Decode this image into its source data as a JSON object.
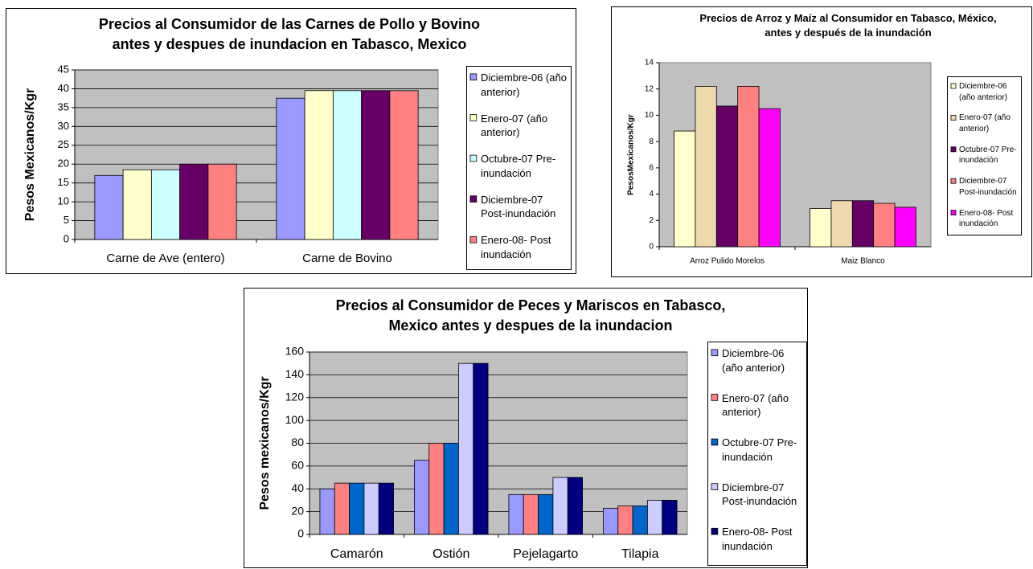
{
  "chart_data": [
    {
      "type": "bar",
      "title": "Precios al Consumidor de las Carnes de Pollo y Bovino antes y despues de inundacion en Tabasco, Mexico",
      "y_label": "Pesos Mexicanos/Kgr",
      "categories": [
        "Carne de Ave (entero)",
        "Carne de Bovino"
      ],
      "ylim": [
        0,
        45
      ],
      "yticks": [
        0,
        5,
        10,
        15,
        20,
        25,
        30,
        35,
        40,
        45
      ],
      "grid": true,
      "series": [
        {
          "name": "Diciembre-06 (año anterior)",
          "color": "#9999ff",
          "values": [
            17,
            37.5
          ]
        },
        {
          "name": "Enero-07 (año anterior)",
          "color": "#ffffcc",
          "values": [
            18.5,
            39.5
          ]
        },
        {
          "name": "Octubre-07 Pre-inundación",
          "color": "#ccffff",
          "values": [
            18.5,
            39.5
          ]
        },
        {
          "name": "Diciembre-07 Post-inundación",
          "color": "#660066",
          "values": [
            20,
            39.5
          ]
        },
        {
          "name": "Enero-08- Post inundación",
          "color": "#ff8080",
          "values": [
            20,
            39.5
          ]
        }
      ]
    },
    {
      "type": "bar",
      "title": "Precios de Arroz y Maíz al Consumidor en Tabasco, México, antes y después de la inundación",
      "y_label": "PesosMexicanos/Kgr",
      "categories": [
        "Arroz Pulido Morelos",
        "Maiz Blanco"
      ],
      "ylim": [
        0,
        14
      ],
      "yticks": [
        0,
        2,
        4,
        6,
        8,
        10,
        12,
        14
      ],
      "grid": false,
      "series": [
        {
          "name": "Diciembre-06 (año anterior)",
          "color": "#ffffcc",
          "values": [
            8.8,
            2.9
          ]
        },
        {
          "name": "Enero-07 (año anterior)",
          "color": "#eed9ad",
          "values": [
            12.2,
            3.5
          ]
        },
        {
          "name": "Octubre-07 Pre-inundación",
          "color": "#660066",
          "values": [
            10.7,
            3.5
          ]
        },
        {
          "name": "Diciembre-07 Post-inundación",
          "color": "#ff8080",
          "values": [
            12.2,
            3.3
          ]
        },
        {
          "name": "Enero-08- Post inundación",
          "color": "#ff00ff",
          "values": [
            10.5,
            3.0
          ]
        }
      ]
    },
    {
      "type": "bar",
      "title": "Precios al Consumidor de Peces y Mariscos en Tabasco, Mexico antes y despues de la inundacion",
      "y_label": "Pesos mexicanos/Kgr",
      "categories": [
        "Camarón",
        "Ostión",
        "Pejelagarto",
        "Tilapia"
      ],
      "ylim": [
        0,
        160
      ],
      "yticks": [
        0,
        20,
        40,
        60,
        80,
        100,
        120,
        140,
        160
      ],
      "grid": true,
      "series": [
        {
          "name": "Diciembre-06 (año anterior)",
          "color": "#9999ff",
          "values": [
            40,
            65,
            35,
            23
          ]
        },
        {
          "name": "Enero-07 (año anterior)",
          "color": "#ff8080",
          "values": [
            45,
            80,
            35,
            25
          ]
        },
        {
          "name": "Octubre-07 Pre-inundación",
          "color": "#0066cc",
          "values": [
            45,
            80,
            35,
            25
          ]
        },
        {
          "name": "Diciembre-07 Post-inundación",
          "color": "#ccccff",
          "values": [
            45,
            150,
            50,
            30
          ]
        },
        {
          "name": "Enero-08- Post inundación",
          "color": "#000080",
          "values": [
            45,
            150,
            50,
            30
          ]
        }
      ]
    }
  ]
}
